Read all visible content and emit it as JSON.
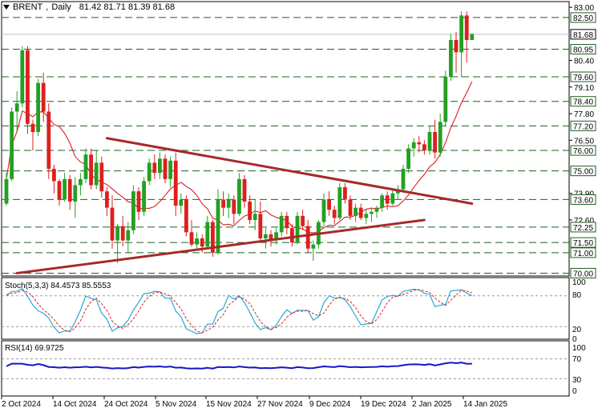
{
  "header": {
    "symbol": "BRENT",
    "timeframe": "Daily",
    "ohlc": "81.42 81.71 81.39 81.68"
  },
  "stoch_header": {
    "label": "Stoch(5,3,3)",
    "values": "84.4573 85.5553"
  },
  "rsi_header": {
    "label": "RSI(14)",
    "value": "69.9725"
  },
  "price_axis": {
    "ticks": [
      "83.00",
      "80.40",
      "79.10",
      "77.80",
      "76.50",
      "73.90",
      "72.60"
    ],
    "levels": [
      "82.50",
      "80.95",
      "79.60",
      "78.40",
      "77.20",
      "76.00",
      "75.00",
      "73.60",
      "72.25",
      "71.50",
      "71.00",
      "70.00"
    ],
    "current": "81.68"
  },
  "stoch_axis": [
    "100",
    "80",
    "20",
    "0"
  ],
  "rsi_axis": [
    "100",
    "70",
    "30",
    "0"
  ],
  "date_axis": [
    "2 Oct 2024",
    "14 Oct 2024",
    "24 Oct 2024",
    "5 Nov 2024",
    "15 Nov 2024",
    "27 Nov 2024",
    "9 Dec 2024",
    "19 Dec 2024",
    "2 Jan 2025",
    "14 Jan 2025"
  ],
  "colors": {
    "bull": "#23a023",
    "bear": "#dd1f1f",
    "trendline": "#a52a2a",
    "ma": "#dd1f1f",
    "stoch_k": "#29a8d8",
    "stoch_d": "#dd1f1f",
    "rsi": "#1616c8",
    "level": "#1f5f1f"
  },
  "chart_data": {
    "type": "candlestick",
    "ylim": [
      69.9,
      83.2
    ],
    "candles": [
      [
        73.4,
        74.9,
        73.3,
        74.6
      ],
      [
        74.6,
        78.1,
        74.5,
        77.9
      ],
      [
        77.9,
        78.9,
        76.9,
        78.3
      ],
      [
        78.3,
        81.1,
        78.1,
        80.9
      ],
      [
        80.9,
        81.1,
        76.8,
        77.3
      ],
      [
        77.3,
        77.5,
        76.0,
        76.9
      ],
      [
        76.9,
        79.5,
        76.7,
        79.3
      ],
      [
        79.3,
        79.8,
        77.4,
        77.9
      ],
      [
        77.9,
        78.3,
        74.6,
        75.1
      ],
      [
        75.1,
        75.3,
        73.9,
        74.5
      ],
      [
        74.5,
        74.6,
        73.3,
        73.6
      ],
      [
        73.6,
        74.9,
        73.5,
        74.6
      ],
      [
        74.6,
        74.8,
        73.1,
        73.5
      ],
      [
        73.5,
        74.7,
        72.7,
        74.3
      ],
      [
        74.3,
        74.9,
        73.8,
        74.6
      ],
      [
        74.6,
        76.1,
        74.4,
        75.8
      ],
      [
        75.8,
        76.1,
        74.1,
        74.3
      ],
      [
        74.3,
        76.0,
        74.1,
        75.4
      ],
      [
        75.4,
        75.7,
        73.7,
        74.0
      ],
      [
        74.0,
        74.2,
        72.8,
        73.2
      ],
      [
        73.2,
        73.8,
        71.2,
        71.6
      ],
      [
        71.6,
        72.4,
        70.5,
        72.3
      ],
      [
        72.3,
        72.8,
        71.3,
        71.6
      ],
      [
        71.6,
        72.5,
        71.0,
        72.1
      ],
      [
        72.1,
        74.3,
        71.9,
        74.0
      ],
      [
        74.0,
        74.2,
        72.6,
        73.0
      ],
      [
        73.0,
        74.7,
        72.8,
        74.5
      ],
      [
        74.5,
        75.6,
        74.3,
        75.4
      ],
      [
        75.4,
        75.8,
        74.6,
        74.9
      ],
      [
        74.9,
        75.9,
        74.6,
        75.6
      ],
      [
        75.6,
        75.8,
        74.4,
        74.6
      ],
      [
        74.6,
        75.7,
        74.2,
        75.5
      ],
      [
        75.5,
        75.9,
        72.8,
        73.3
      ],
      [
        73.3,
        73.9,
        72.9,
        73.6
      ],
      [
        73.6,
        73.8,
        71.8,
        72.0
      ],
      [
        72.0,
        72.6,
        71.3,
        71.4
      ],
      [
        71.4,
        72.0,
        71.2,
        71.7
      ],
      [
        71.7,
        71.9,
        71.0,
        71.3
      ],
      [
        71.3,
        72.8,
        71.2,
        72.5
      ],
      [
        72.5,
        72.6,
        70.8,
        71.0
      ],
      [
        71.0,
        74.1,
        70.9,
        73.6
      ],
      [
        73.6,
        74.0,
        72.8,
        73.2
      ],
      [
        73.2,
        73.9,
        72.7,
        73.6
      ],
      [
        73.6,
        73.8,
        72.4,
        72.9
      ],
      [
        72.9,
        74.9,
        72.8,
        74.6
      ],
      [
        74.6,
        74.8,
        73.2,
        73.5
      ],
      [
        73.5,
        73.8,
        72.4,
        72.6
      ],
      [
        72.6,
        73.6,
        72.1,
        72.9
      ],
      [
        72.9,
        73.5,
        71.5,
        71.7
      ],
      [
        71.7,
        72.2,
        71.2,
        71.9
      ],
      [
        71.9,
        72.1,
        71.3,
        71.6
      ],
      [
        71.6,
        72.2,
        71.4,
        72.0
      ],
      [
        72.0,
        73.0,
        71.8,
        72.8
      ],
      [
        72.8,
        73.0,
        71.9,
        72.2
      ],
      [
        72.2,
        72.4,
        71.3,
        71.5
      ],
      [
        71.5,
        73.0,
        71.4,
        72.8
      ],
      [
        72.8,
        73.1,
        72.1,
        72.3
      ],
      [
        72.3,
        72.6,
        71.0,
        71.2
      ],
      [
        71.2,
        71.6,
        70.6,
        71.4
      ],
      [
        71.4,
        72.6,
        71.2,
        72.5
      ],
      [
        72.5,
        73.9,
        72.3,
        73.6
      ],
      [
        73.6,
        74.0,
        72.8,
        73.1
      ],
      [
        73.1,
        73.3,
        72.4,
        72.7
      ],
      [
        72.7,
        74.4,
        72.6,
        74.2
      ],
      [
        74.2,
        74.4,
        73.4,
        73.6
      ],
      [
        73.6,
        73.8,
        72.6,
        72.8
      ],
      [
        72.8,
        73.4,
        72.5,
        73.2
      ],
      [
        73.2,
        73.4,
        72.6,
        72.7
      ],
      [
        72.7,
        73.1,
        72.4,
        72.9
      ],
      [
        72.9,
        73.2,
        72.5,
        73.0
      ],
      [
        73.0,
        73.3,
        72.7,
        73.2
      ],
      [
        73.2,
        73.9,
        73.0,
        73.8
      ],
      [
        73.8,
        74.0,
        73.1,
        73.4
      ],
      [
        73.4,
        74.1,
        73.3,
        73.9
      ],
      [
        73.9,
        74.3,
        73.6,
        74.1
      ],
      [
        74.1,
        75.3,
        74.0,
        75.1
      ],
      [
        75.1,
        76.3,
        74.9,
        76.1
      ],
      [
        76.1,
        76.6,
        75.7,
        76.4
      ],
      [
        76.4,
        76.7,
        75.9,
        76.3
      ],
      [
        76.3,
        76.5,
        75.8,
        76.0
      ],
      [
        76.0,
        77.2,
        75.8,
        76.9
      ],
      [
        76.9,
        77.5,
        75.6,
        75.9
      ],
      [
        75.9,
        77.8,
        75.7,
        77.4
      ],
      [
        77.4,
        79.9,
        77.2,
        79.6
      ],
      [
        79.6,
        81.7,
        79.4,
        81.4
      ],
      [
        81.4,
        81.8,
        79.8,
        80.8
      ],
      [
        80.8,
        82.8,
        79.6,
        82.6
      ],
      [
        82.6,
        82.8,
        80.3,
        81.4
      ],
      [
        81.4,
        81.7,
        81.4,
        81.7
      ]
    ],
    "trendlines": [
      {
        "from": [
          2,
          70.0
        ],
        "to": [
          79,
          72.6
        ]
      },
      {
        "from": [
          19,
          76.6
        ],
        "to": [
          88,
          73.4
        ]
      }
    ]
  }
}
